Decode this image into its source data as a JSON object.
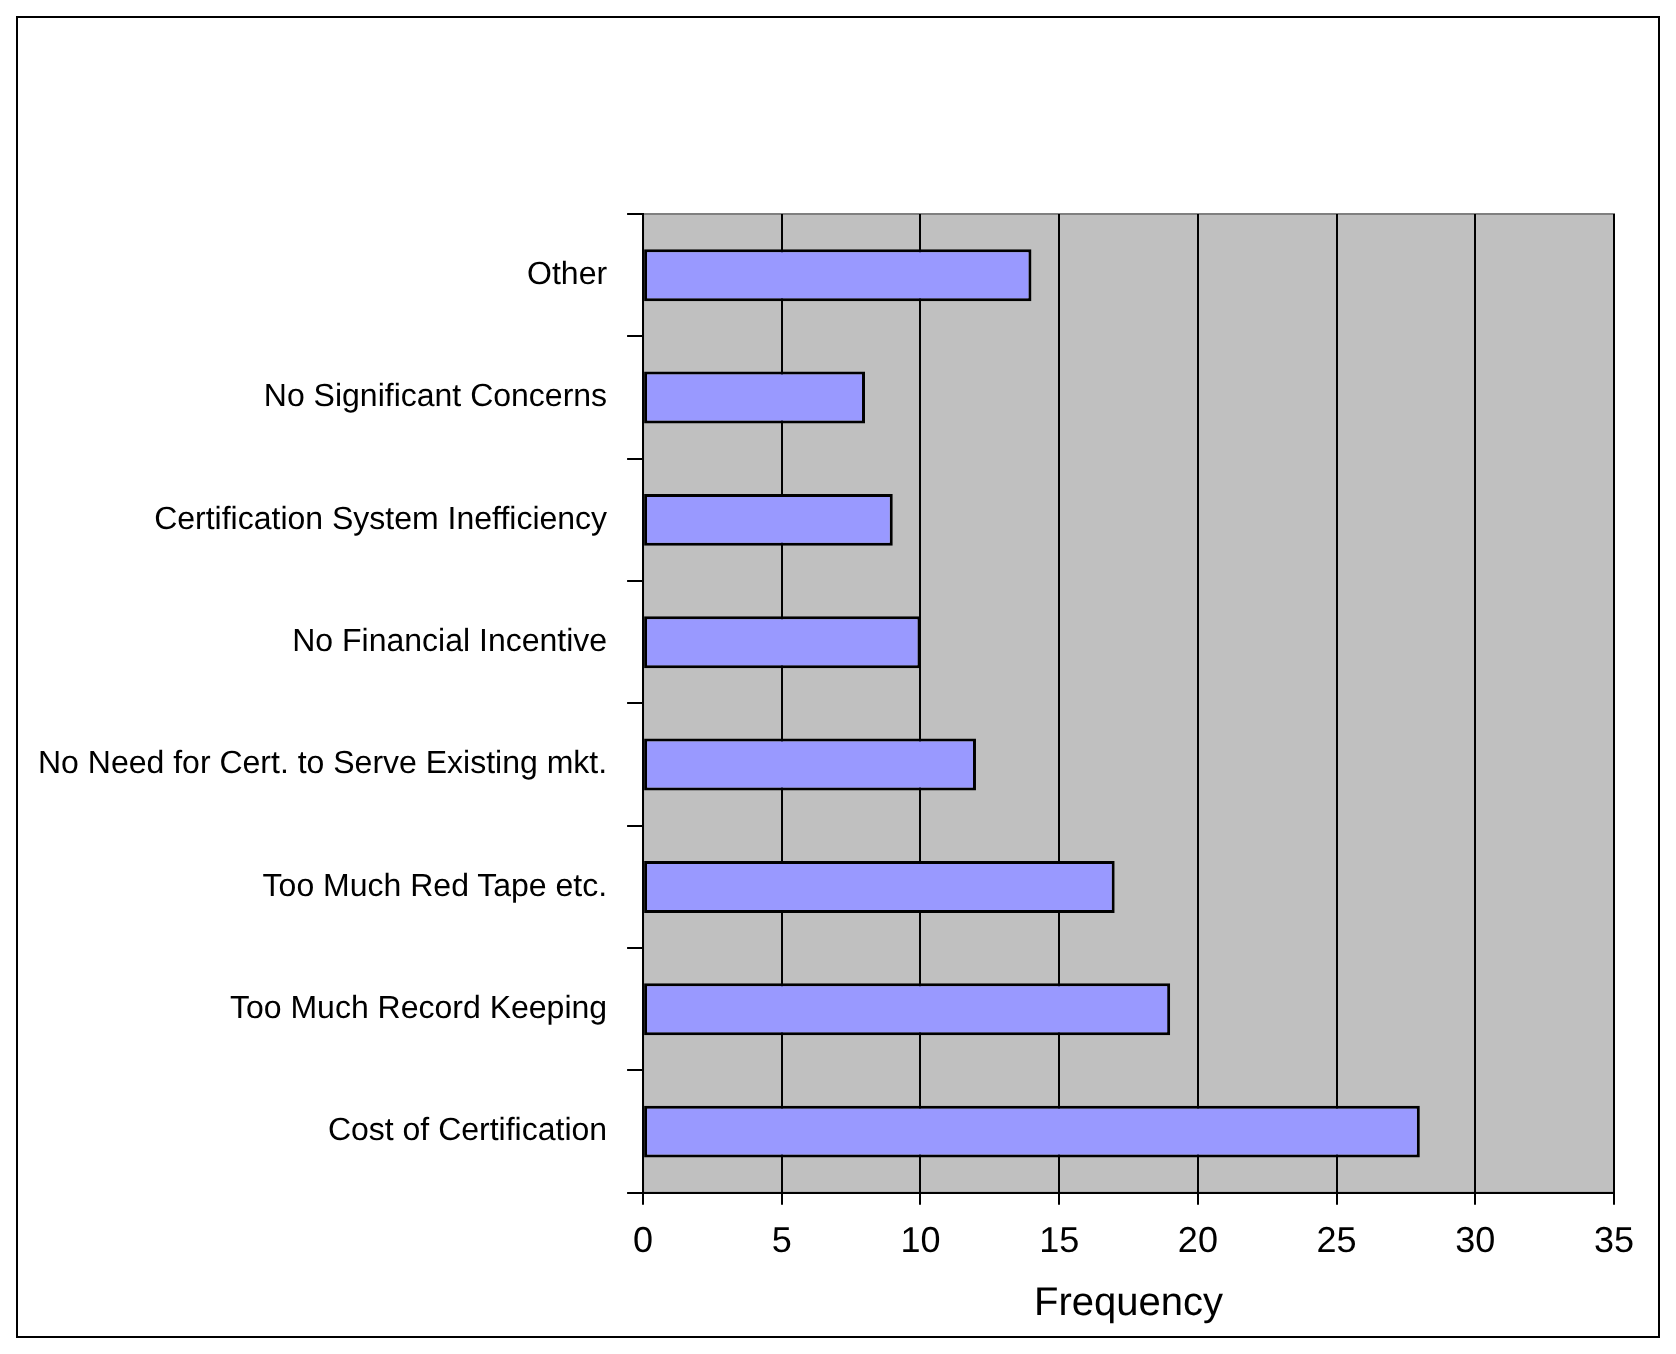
{
  "chart_data": {
    "type": "bar",
    "orientation": "horizontal",
    "xlabel": "Frequency",
    "categories": [
      "Other",
      "No Significant Concerns",
      "Certification System Inefficiency",
      "No Financial Incentive",
      "No Need for Cert. to Serve Existing mkt.",
      "Too Much Red Tape etc.",
      "Too Much Record Keeping",
      "Cost of Certification"
    ],
    "values": [
      14,
      8,
      9,
      10,
      12,
      17,
      19,
      28
    ],
    "color": "#9999ff",
    "xlim": [
      0,
      35
    ],
    "xticks": [
      0,
      5,
      10,
      15,
      20,
      25,
      30,
      35
    ],
    "grid": "x",
    "legend": false
  }
}
